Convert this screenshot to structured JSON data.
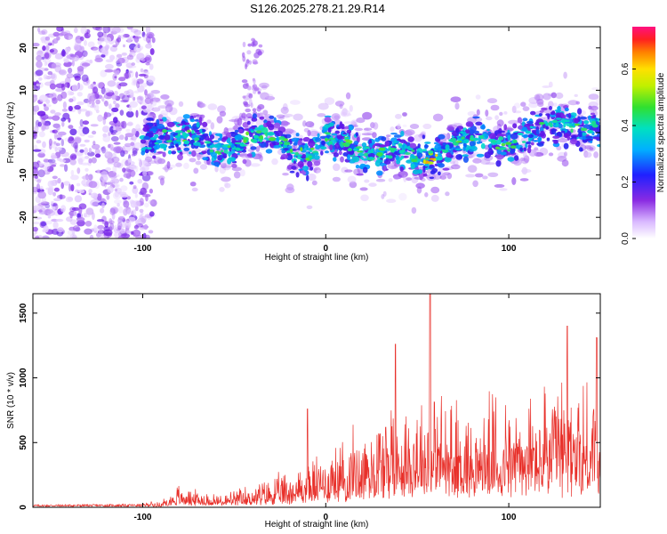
{
  "title": "S126.2025.278.21.29.R14",
  "chart_data": [
    {
      "type": "heatmap",
      "name": "spectrogram",
      "xlabel": "Height of straight line (km)",
      "ylabel": "Frequency (Hz)",
      "xlim": [
        -160,
        150
      ],
      "ylim": [
        -25,
        25
      ],
      "xticks": [
        -100,
        0,
        100
      ],
      "yticks": [
        -20,
        -10,
        0,
        10,
        20
      ],
      "colorbar": {
        "label": "Normalized spectral amplitude",
        "range": [
          0,
          0.75
        ],
        "ticks": [
          "0.0",
          "0.2",
          "0.4",
          "0.6"
        ]
      },
      "description_profile": {
        "noise_region_x": [
          -160,
          -100
        ],
        "signal_region_x": [
          -100,
          150
        ],
        "track_center_hz": [
          [
            -100,
            -2
          ],
          [
            -90,
            -1
          ],
          [
            -80,
            -1
          ],
          [
            -70,
            -1
          ],
          [
            -60,
            -4
          ],
          [
            -50,
            -3
          ],
          [
            -40,
            -1
          ],
          [
            -30,
            0
          ],
          [
            -20,
            -4
          ],
          [
            -10,
            -6
          ],
          [
            0,
            -1
          ],
          [
            10,
            -2
          ],
          [
            20,
            -5
          ],
          [
            30,
            -5
          ],
          [
            40,
            -4
          ],
          [
            50,
            -6
          ],
          [
            60,
            -6
          ],
          [
            70,
            -2
          ],
          [
            80,
            -1
          ],
          [
            90,
            -2
          ],
          [
            100,
            -3
          ],
          [
            110,
            -1
          ],
          [
            120,
            2
          ],
          [
            130,
            2
          ],
          [
            140,
            1
          ],
          [
            150,
            1
          ]
        ]
      }
    },
    {
      "type": "line",
      "name": "snr",
      "xlabel": "Height of straight line (km)",
      "ylabel": "SNR (10 * v/v)",
      "xlim": [
        -160,
        150
      ],
      "ylim": [
        0,
        1650
      ],
      "xticks": [
        -100,
        0,
        100
      ],
      "yticks": [
        0,
        500,
        1000,
        1500
      ],
      "color": "#e8302a",
      "envelope": [
        [
          -160,
          15
        ],
        [
          -100,
          20
        ],
        [
          -90,
          60
        ],
        [
          -80,
          200
        ],
        [
          -70,
          150
        ],
        [
          -60,
          120
        ],
        [
          -50,
          140
        ],
        [
          -40,
          200
        ],
        [
          -30,
          250
        ],
        [
          -20,
          320
        ],
        [
          -10,
          400
        ],
        [
          0,
          500
        ],
        [
          10,
          600
        ],
        [
          20,
          750
        ],
        [
          30,
          900
        ],
        [
          40,
          950
        ],
        [
          50,
          1000
        ],
        [
          60,
          1000
        ],
        [
          70,
          950
        ],
        [
          80,
          900
        ],
        [
          90,
          950
        ],
        [
          100,
          1000
        ],
        [
          110,
          950
        ],
        [
          120,
          1050
        ],
        [
          130,
          1100
        ],
        [
          140,
          1100
        ],
        [
          150,
          1100
        ]
      ],
      "peaks": [
        [
          -10,
          760
        ],
        [
          38,
          1260
        ],
        [
          57,
          1650
        ],
        [
          132,
          1400
        ],
        [
          148,
          1310
        ]
      ]
    }
  ]
}
